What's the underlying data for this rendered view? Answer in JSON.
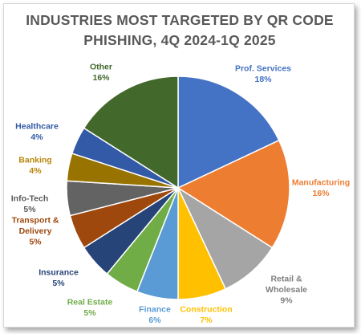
{
  "chart_data": {
    "type": "pie",
    "title_lines": [
      "INDUSTRIES MOST TARGETED BY QR CODE",
      "PHISHING, 4Q 2024-1Q 2025"
    ],
    "slices": [
      {
        "label": "Prof. Services",
        "label_lines": [
          "Prof. Services"
        ],
        "value": 18,
        "value_label": "18%",
        "color": "#4472C4"
      },
      {
        "label": "Manufacturing",
        "label_lines": [
          "Manufacturing"
        ],
        "value": 16,
        "value_label": "16%",
        "color": "#ED7D31"
      },
      {
        "label": "Retail & Wholesale",
        "label_lines": [
          "Retail &",
          "Wholesale"
        ],
        "value": 9,
        "value_label": "9%",
        "color": "#A5A5A5"
      },
      {
        "label": "Construction",
        "label_lines": [
          "Construction"
        ],
        "value": 7,
        "value_label": "7%",
        "color": "#FFC000"
      },
      {
        "label": "Finance",
        "label_lines": [
          "Finance"
        ],
        "value": 6,
        "value_label": "6%",
        "color": "#5B9BD5"
      },
      {
        "label": "Real Estate",
        "label_lines": [
          "Real Estate"
        ],
        "value": 5,
        "value_label": "5%",
        "color": "#70AD47"
      },
      {
        "label": "Insurance",
        "label_lines": [
          "Insurance"
        ],
        "value": 5,
        "value_label": "5%",
        "color": "#264478"
      },
      {
        "label": "Transport & Delivery",
        "label_lines": [
          "Transport &",
          "Delivery"
        ],
        "value": 5,
        "value_label": "5%",
        "color": "#9E480E"
      },
      {
        "label": "Info-Tech",
        "label_lines": [
          "Info-Tech"
        ],
        "value": 5,
        "value_label": "5%",
        "color": "#636363"
      },
      {
        "label": "Banking",
        "label_lines": [
          "Banking"
        ],
        "value": 4,
        "value_label": "4%",
        "color": "#997300"
      },
      {
        "label": "Healthcare",
        "label_lines": [
          "Healthcare"
        ],
        "value": 4,
        "value_label": "4%",
        "color": "#335AA6"
      },
      {
        "label": "Other",
        "label_lines": [
          "Other"
        ],
        "value": 16,
        "value_label": "16%",
        "color": "#43682B"
      }
    ],
    "label_colors": [
      "#4472C4",
      "#ED7D31",
      "#7F7F7F",
      "#FFC000",
      "#5B9BD5",
      "#70AD47",
      "#264478",
      "#9E480E",
      "#595959",
      "#B8860B",
      "#335AA6",
      "#43682B"
    ],
    "start_angle_deg": 0,
    "direction": "clockwise",
    "legend": "none",
    "data_labels": "outside"
  }
}
